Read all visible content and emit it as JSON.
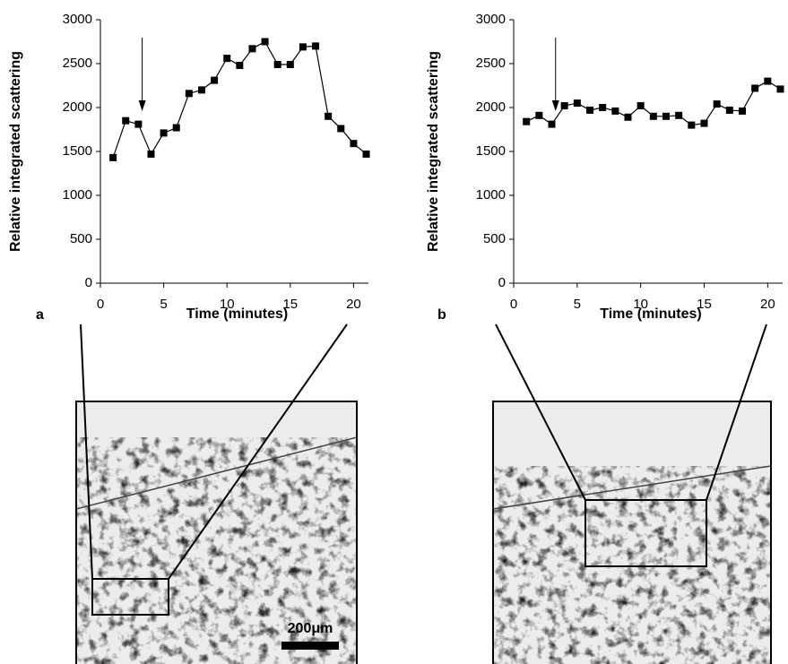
{
  "chart_data": [
    {
      "type": "line",
      "panel_label": "a",
      "xlabel": "Time (minutes)",
      "ylabel": "Relative integrated scattering",
      "color": "#000000",
      "x": [
        1,
        2,
        3,
        4,
        5,
        6,
        7,
        8,
        9,
        10,
        11,
        12,
        13,
        14,
        15,
        16,
        17,
        18,
        19,
        20,
        21
      ],
      "values": [
        1430,
        1850,
        1810,
        1470,
        1710,
        1770,
        2160,
        2200,
        2310,
        2560,
        2480,
        2670,
        2750,
        2490,
        2490,
        2690,
        2700,
        1900,
        1760,
        1590,
        1470
      ],
      "xlim": [
        0,
        21.6
      ],
      "ylim": [
        0,
        3000
      ],
      "xticks": [
        0,
        5,
        10,
        15,
        20
      ],
      "yticks": [
        0,
        500,
        1000,
        1500,
        2000,
        2500,
        3000
      ]
    },
    {
      "type": "line",
      "panel_label": "b",
      "xlabel": "Time (minutes)",
      "ylabel": "Relative integrated scattering",
      "color": "#000000",
      "x": [
        1,
        2,
        3,
        4,
        5,
        6,
        7,
        8,
        9,
        10,
        11,
        12,
        13,
        14,
        15,
        16,
        17,
        18,
        19,
        20,
        21
      ],
      "values": [
        1840,
        1910,
        1810,
        2020,
        2050,
        1970,
        2000,
        1960,
        1890,
        2020,
        1900,
        1900,
        1910,
        1800,
        1820,
        2040,
        1970,
        1960,
        2220,
        2300,
        2210
      ],
      "xlim": [
        0,
        21.6
      ],
      "ylim": [
        0,
        3000
      ],
      "xticks": [
        0,
        5,
        10,
        15,
        20
      ],
      "yticks": [
        0,
        500,
        1000,
        1500,
        2000,
        2500,
        3000
      ]
    }
  ],
  "scale_bar": "200μm"
}
